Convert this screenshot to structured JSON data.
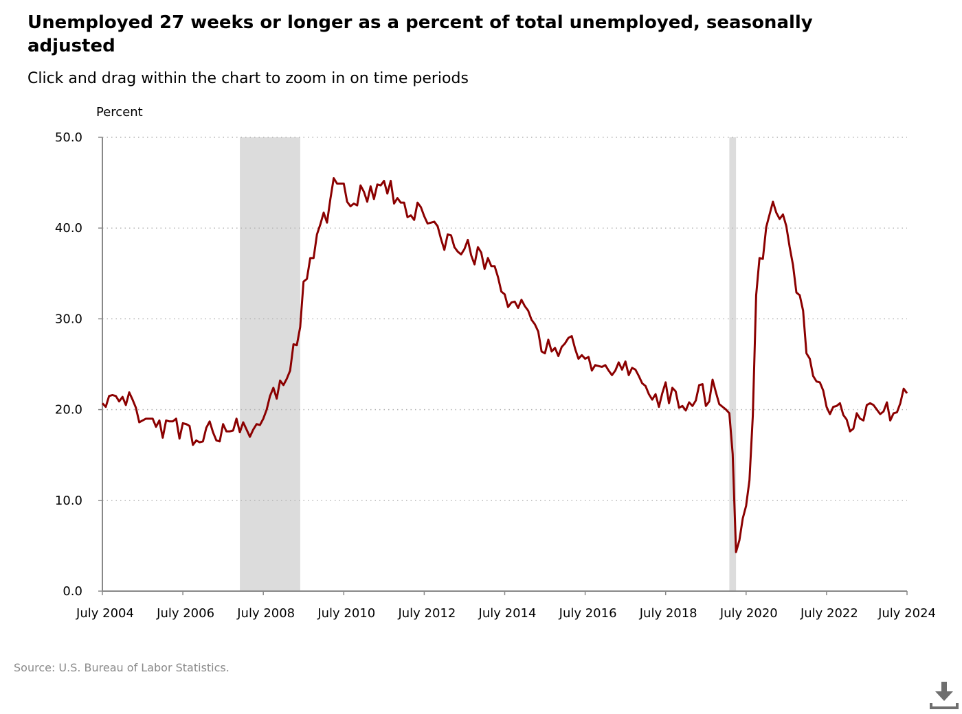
{
  "title": "Unemployed 27 weeks or longer as a percent of total unemployed, seasonally adjusted",
  "subtitle": "Click and drag within the chart to zoom in on time periods",
  "source": "Source: U.S. Bureau of Labor Statistics.",
  "download_icon": "download-icon",
  "colors": {
    "series": "#8b0000",
    "recession": "#dcdcdc",
    "grid": "#b4b4b4",
    "axis": "#888888",
    "source_text": "#8a8a8a"
  },
  "chart_data": {
    "type": "line",
    "title": "Unemployed 27 weeks or longer as a percent of total unemployed, seasonally adjusted",
    "ylabel": "Percent",
    "xlabel": "",
    "ylim": [
      0,
      50
    ],
    "xlim": [
      "2004-07",
      "2024-07"
    ],
    "yticks": [
      "0.0",
      "10.0",
      "20.0",
      "30.0",
      "40.0",
      "50.0"
    ],
    "xticks": [
      {
        "date": "2004-07",
        "label": "July 2004"
      },
      {
        "date": "2006-07",
        "label": "July 2006"
      },
      {
        "date": "2008-07",
        "label": "July 2008"
      },
      {
        "date": "2010-07",
        "label": "July 2010"
      },
      {
        "date": "2012-07",
        "label": "July 2012"
      },
      {
        "date": "2014-07",
        "label": "July 2014"
      },
      {
        "date": "2016-07",
        "label": "July 2016"
      },
      {
        "date": "2018-07",
        "label": "July 2018"
      },
      {
        "date": "2020-07",
        "label": "July 2020"
      },
      {
        "date": "2022-07",
        "label": "July 2022"
      },
      {
        "date": "2024-07",
        "label": "July 2024"
      }
    ],
    "grid": true,
    "recessions": [
      {
        "start": "2007-12",
        "end": "2009-06"
      },
      {
        "start": "2020-02",
        "end": "2020-04"
      }
    ],
    "series": [
      {
        "start": "2004-07",
        "values": [
          20.7,
          20.3,
          21.5,
          21.6,
          21.5,
          20.9,
          21.4,
          20.5,
          21.9,
          21.1,
          20.2,
          18.6,
          18.8,
          19.0,
          19.0,
          19.0,
          18.1,
          18.8,
          16.9,
          18.8,
          18.7,
          18.7,
          19.0,
          16.8,
          18.5,
          18.4,
          18.2,
          16.1,
          16.6,
          16.4,
          16.5,
          18.0,
          18.7,
          17.5,
          16.6,
          16.5,
          18.4,
          17.6,
          17.6,
          17.7,
          19.0,
          17.5,
          18.6,
          17.8,
          17.0,
          17.8,
          18.4,
          18.3,
          19.0,
          20.0,
          21.5,
          22.4,
          21.2,
          23.2,
          22.7,
          23.4,
          24.3,
          27.2,
          27.1,
          29.1,
          34.1,
          34.4,
          36.7,
          36.7,
          39.3,
          40.4,
          41.7,
          40.6,
          43.2,
          45.5,
          44.9,
          44.9,
          44.9,
          42.9,
          42.4,
          42.7,
          42.5,
          44.7,
          44.0,
          42.9,
          44.6,
          43.2,
          44.8,
          44.7,
          45.2,
          43.8,
          45.2,
          42.7,
          43.3,
          42.8,
          42.8,
          41.2,
          41.4,
          40.9,
          42.8,
          42.3,
          41.3,
          40.5,
          40.6,
          40.7,
          40.2,
          38.8,
          37.6,
          39.3,
          39.2,
          37.9,
          37.4,
          37.1,
          37.7,
          38.7,
          37.0,
          36.0,
          37.9,
          37.3,
          35.5,
          36.7,
          35.8,
          35.8,
          34.6,
          33.0,
          32.7,
          31.3,
          31.8,
          31.9,
          31.2,
          32.1,
          31.4,
          30.9,
          29.9,
          29.4,
          28.6,
          26.4,
          26.2,
          27.7,
          26.4,
          26.8,
          25.9,
          26.9,
          27.3,
          27.9,
          28.1,
          26.7,
          25.6,
          26.0,
          25.6,
          25.8,
          24.3,
          24.9,
          24.8,
          24.7,
          24.9,
          24.3,
          23.8,
          24.3,
          25.2,
          24.4,
          25.3,
          23.8,
          24.6,
          24.4,
          23.7,
          22.9,
          22.6,
          21.7,
          21.1,
          21.7,
          20.3,
          21.8,
          23.0,
          20.7,
          22.4,
          22.0,
          20.2,
          20.4,
          19.9,
          20.8,
          20.4,
          21.0,
          22.7,
          22.8,
          20.4,
          20.9,
          23.3,
          21.9,
          20.6,
          20.3,
          20.0,
          19.6,
          15.1,
          4.3,
          5.6,
          8.0,
          9.4,
          12.2,
          19.3,
          32.6,
          36.7,
          36.6,
          40.1,
          41.5,
          42.9,
          41.7,
          41.0,
          41.5,
          40.2,
          37.9,
          35.9,
          32.9,
          32.6,
          30.9,
          26.2,
          25.6,
          23.7,
          23.1,
          23.0,
          22.1,
          20.3,
          19.5,
          20.3,
          20.4,
          20.7,
          19.4,
          18.9,
          17.6,
          17.9,
          19.6,
          19.0,
          18.8,
          20.5,
          20.7,
          20.5,
          20.0,
          19.5,
          19.8,
          20.8,
          18.8,
          19.6,
          19.7,
          20.7,
          22.3,
          21.8
        ]
      }
    ]
  }
}
